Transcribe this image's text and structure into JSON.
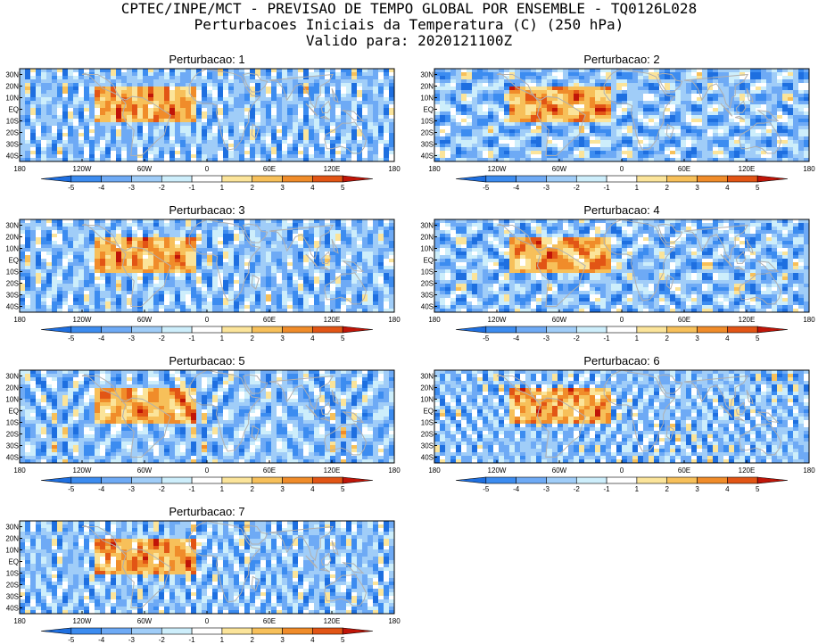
{
  "header": {
    "line1": "CPTEC/INPE/MCT - PREVISAO DE TEMPO GLOBAL POR ENSEMBLE - TQ0126L028",
    "line2": "Perturbacoes Iniciais da Temperatura (C) (250 hPa)",
    "line3": "Valido para: 2020121100Z"
  },
  "map_axes": {
    "x_ticks": [
      "180",
      "120W",
      "60W",
      "0",
      "60E",
      "120E",
      "180"
    ],
    "y_ticks": [
      "30N",
      "20N",
      "10N",
      "EQ",
      "10S",
      "20S",
      "30S",
      "40S"
    ]
  },
  "colorbar": {
    "labels": [
      "-5",
      "-4",
      "-3",
      "-2",
      "-1",
      "1",
      "2",
      "3",
      "4",
      "5"
    ],
    "colors": [
      "#1e6fe0",
      "#3c8cf0",
      "#6eaaf5",
      "#a0cdf8",
      "#cdeefb",
      "#ffffff",
      "#fbe49a",
      "#f7c05a",
      "#f08c2a",
      "#e25515",
      "#c01508"
    ]
  },
  "panels": [
    {
      "title": "Perturbacao: 1",
      "seed": 11
    },
    {
      "title": "Perturbacao: 2",
      "seed": 23
    },
    {
      "title": "Perturbacao: 3",
      "seed": 37
    },
    {
      "title": "Perturbacao: 4",
      "seed": 41
    },
    {
      "title": "Perturbacao: 5",
      "seed": 53
    },
    {
      "title": "Perturbacao: 6",
      "seed": 67
    },
    {
      "title": "Perturbacao: 7",
      "seed": 79
    }
  ]
}
